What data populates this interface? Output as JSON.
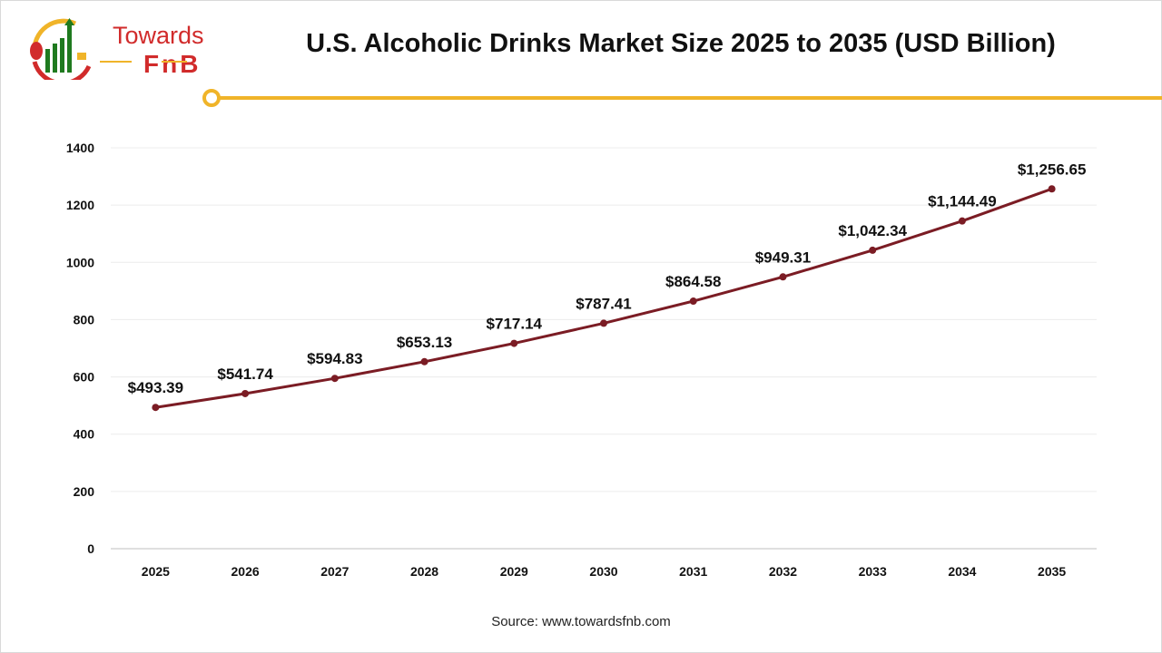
{
  "logo": {
    "line1": "Towards",
    "line2": "FnB"
  },
  "title": "U.S. Alcoholic Drinks Market Size 2025 to 2035 (USD Billion)",
  "source": "Source: www.towardsfnb.com",
  "colors": {
    "line": "#7b1c24",
    "accent": "#f0b429",
    "brand": "#d12b2b"
  },
  "chart_data": {
    "type": "line",
    "title": "U.S. Alcoholic Drinks Market Size 2025 to 2035 (USD Billion)",
    "xlabel": "",
    "ylabel": "",
    "categories": [
      "2025",
      "2026",
      "2027",
      "2028",
      "2029",
      "2030",
      "2031",
      "2032",
      "2033",
      "2034",
      "2035"
    ],
    "values": [
      493.39,
      541.74,
      594.83,
      653.13,
      717.14,
      787.41,
      864.58,
      949.31,
      1042.34,
      1144.49,
      1256.65
    ],
    "data_labels": [
      "$493.39",
      "$541.74",
      "$594.83",
      "$653.13",
      "$717.14",
      "$787.41",
      "$864.58",
      "$949.31",
      "$1,042.34",
      "$1,144.49",
      "$1,256.65"
    ],
    "ylim": [
      0,
      1400
    ],
    "yticks": [
      "0",
      "200",
      "400",
      "600",
      "800",
      "1000",
      "1200",
      "1400"
    ],
    "grid": true,
    "legend": "none"
  }
}
